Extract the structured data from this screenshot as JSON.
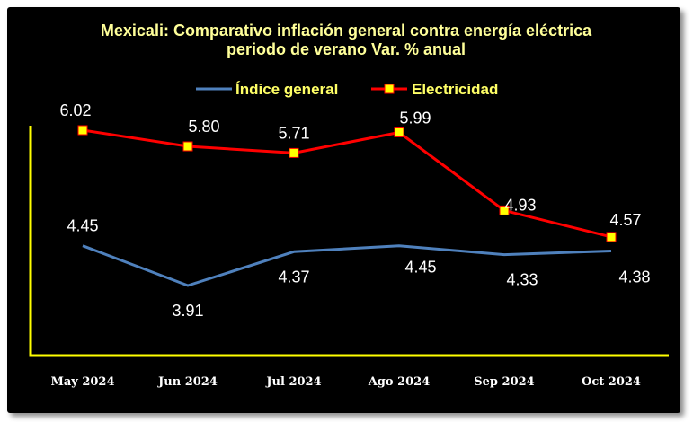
{
  "chart_data": {
    "type": "line",
    "title": "Mexicali: Comparativo inflación general contra energía eléctrica",
    "subtitle": "periodo de verano Var. % anual",
    "categories": [
      "May 2024",
      "Jun 2024",
      "Jul 2024",
      "Ago 2024",
      "Sep 2024",
      "Oct 2024"
    ],
    "series": [
      {
        "name": "Índice general",
        "values": [
          4.45,
          3.91,
          4.37,
          4.45,
          4.33,
          4.38
        ],
        "color": "#4f81bd",
        "marker": "none"
      },
      {
        "name": "Electricidad",
        "values": [
          6.02,
          5.8,
          5.71,
          5.99,
          4.93,
          4.57
        ],
        "color": "#ff0000",
        "marker": "square",
        "marker_color": "#ffff00"
      }
    ],
    "labels": {
      "Índice general": [
        "4.45",
        "3.91",
        "4.37",
        "4.45",
        "4.33",
        "4.38"
      ],
      "Electricidad": [
        "6.02",
        "5.80",
        "5.71",
        "5.99",
        "4.93",
        "4.57"
      ]
    },
    "ylim": [
      2.5,
      6.5
    ],
    "legend": "top",
    "axis_color": "#ffff00",
    "background": "#000000"
  }
}
